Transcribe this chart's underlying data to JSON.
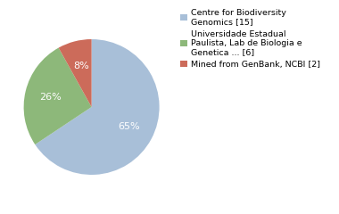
{
  "slices": [
    65,
    26,
    8
  ],
  "labels": [
    "65%",
    "26%",
    "8%"
  ],
  "colors": [
    "#a8bfd8",
    "#8db87a",
    "#cc6b5a"
  ],
  "legend_labels": [
    "Centre for Biodiversity\nGenomics [15]",
    "Universidade Estadual\nPaulista, Lab de Biologia e\nGenetica ... [6]",
    "Mined from GenBank, NCBI [2]"
  ],
  "startangle": 90,
  "background_color": "#ffffff",
  "text_color": "#ffffff",
  "pct_fontsize": 8,
  "legend_fontsize": 6.8
}
